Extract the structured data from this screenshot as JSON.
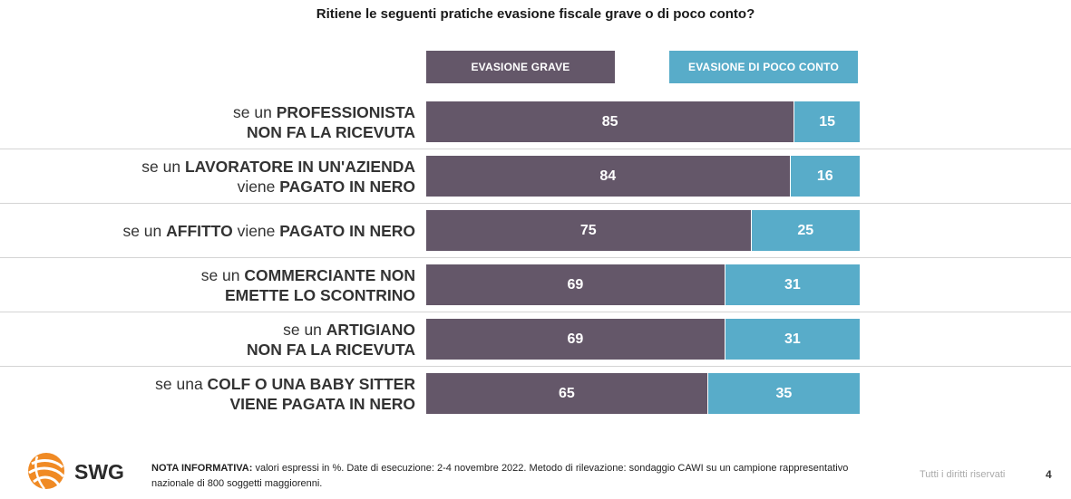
{
  "chart_data": {
    "type": "bar",
    "title": "Ritiene le seguenti pratiche evasione fiscale grave o di poco conto?",
    "stacked": true,
    "orientation": "horizontal",
    "categories": [
      [
        {
          "t": "se un ",
          "b": false
        },
        {
          "t": "PROFESSIONISTA",
          "b": true
        },
        {
          "t": "\n",
          "b": false
        },
        {
          "t": "NON FA LA RICEVUTA",
          "b": true
        }
      ],
      [
        {
          "t": "se un ",
          "b": false
        },
        {
          "t": "LAVORATORE IN UN'AZIENDA",
          "b": true
        },
        {
          "t": "\n",
          "b": false
        },
        {
          "t": "viene ",
          "b": false
        },
        {
          "t": "PAGATO IN NERO",
          "b": true
        }
      ],
      [
        {
          "t": "se un ",
          "b": false
        },
        {
          "t": "AFFITTO",
          "b": true
        },
        {
          "t": " viene ",
          "b": false
        },
        {
          "t": "PAGATO IN NERO",
          "b": true
        }
      ],
      [
        {
          "t": "se un ",
          "b": false
        },
        {
          "t": "COMMERCIANTE NON",
          "b": true
        },
        {
          "t": "\n",
          "b": false
        },
        {
          "t": "EMETTE LO SCONTRINO",
          "b": true
        }
      ],
      [
        {
          "t": "se un ",
          "b": false
        },
        {
          "t": "ARTIGIANO",
          "b": true
        },
        {
          "t": "\n",
          "b": false
        },
        {
          "t": "NON FA LA RICEVUTA",
          "b": true
        }
      ],
      [
        {
          "t": "se una ",
          "b": false
        },
        {
          "t": "COLF O UNA BABY SITTER",
          "b": true
        },
        {
          "t": "\n",
          "b": false
        },
        {
          "t": "VIENE PAGATA IN NERO",
          "b": true
        }
      ]
    ],
    "series": [
      {
        "name": "EVASIONE GRAVE",
        "values": [
          85,
          84,
          75,
          69,
          69,
          65
        ],
        "color": "#645769"
      },
      {
        "name": "EVASIONE DI POCO CONTO",
        "values": [
          15,
          16,
          25,
          31,
          31,
          35
        ],
        "color": "#58acc9"
      }
    ],
    "xlim": [
      0,
      100
    ],
    "legend": "top"
  },
  "footer": {
    "note_label": "NOTA INFORMATIVA:",
    "note_text": " valori espressi in %. Date di esecuzione: 2-4 novembre 2022. Metodo di rilevazione: sondaggio CAWI su un campione rappresentativo nazionale di 800 soggetti maggiorenni.",
    "rights": "Tutti i diritti riservati",
    "page": "4",
    "logo_text": "SWG"
  }
}
